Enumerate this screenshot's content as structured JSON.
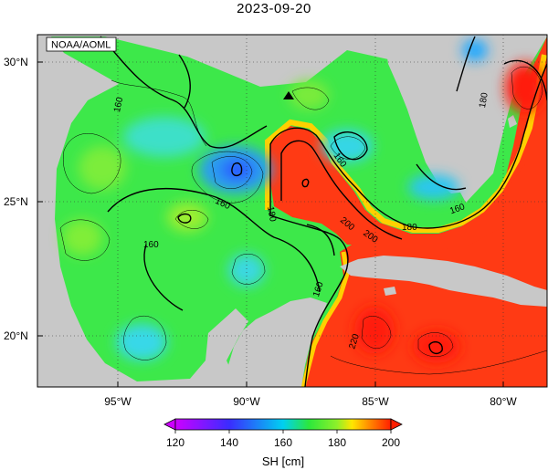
{
  "title": "2023-09-20",
  "credit": "NOAA/AOML",
  "lat_labels": [
    "30°N",
    "25°N",
    "20°N"
  ],
  "lon_labels": [
    "95°W",
    "90°W",
    "85°W",
    "80°W"
  ],
  "contour_labels": [
    "160",
    "160",
    "160",
    "160",
    "160",
    "160",
    "180",
    "180",
    "180",
    "200",
    "200",
    "220"
  ],
  "colorbar": {
    "ticks": [
      "120",
      "140",
      "160",
      "180",
      "200"
    ],
    "label": "SH [cm]",
    "colors": [
      "#cc00ff",
      "#3a2cff",
      "#00c8ff",
      "#26e83a",
      "#ffe600",
      "#ff2d00"
    ]
  },
  "colors": {
    "land": "#c8c8c8",
    "ocean_green": "#3ce64a",
    "warm_red": "#ff3a14",
    "cool_blue": "#28d6ee"
  },
  "marker_icon": "triangle-marker"
}
